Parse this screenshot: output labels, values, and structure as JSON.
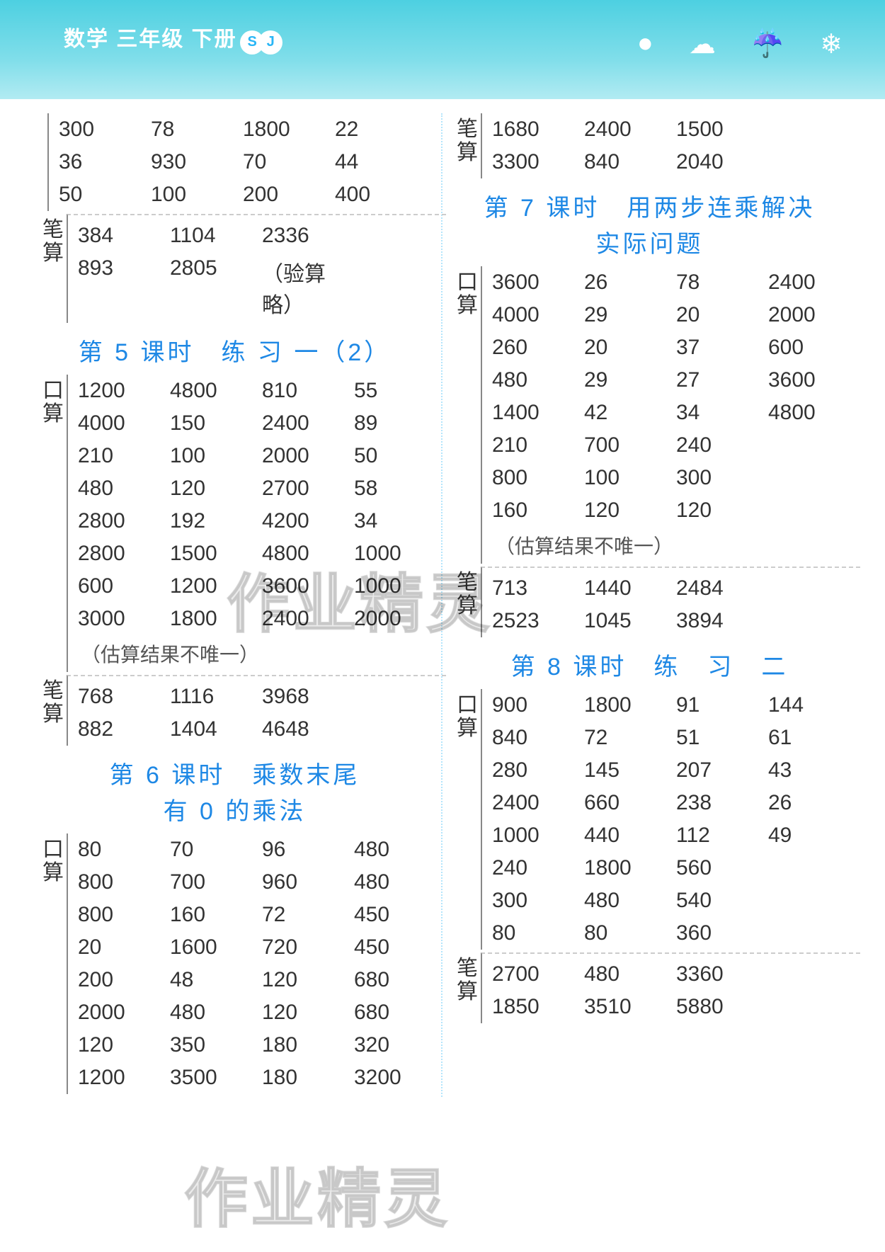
{
  "header": {
    "title": "数学 三年级 下册",
    "badge_s": "S",
    "badge_j": "J",
    "icons": {
      "sun": "●",
      "cloud": "☁",
      "rain": "☔",
      "snow": "❄"
    }
  },
  "left": {
    "top_kousuan_label": "",
    "top_rows": [
      [
        "300",
        "78",
        "1800",
        "22"
      ],
      [
        "36",
        "930",
        "70",
        "44"
      ],
      [
        "50",
        "100",
        "200",
        "400"
      ]
    ],
    "top_bisuan_label": "笔算",
    "top_bisuan_rows": [
      [
        "384",
        "1104",
        "2336",
        ""
      ],
      [
        "893",
        "2805",
        "（验算略）",
        ""
      ]
    ],
    "sec5_title": "第 5 课时　练 习 一（2）",
    "sec5_kousuan_label": "口算",
    "sec5_kousuan_rows": [
      [
        "1200",
        "4800",
        "810",
        "55"
      ],
      [
        "4000",
        "150",
        "2400",
        "89"
      ],
      [
        "210",
        "100",
        "2000",
        "50"
      ],
      [
        "480",
        "120",
        "2700",
        "58"
      ],
      [
        "2800",
        "192",
        "4200",
        "34"
      ],
      [
        "2800",
        "1500",
        "4800",
        "1000"
      ],
      [
        "600",
        "1200",
        "3600",
        "1000"
      ],
      [
        "3000",
        "1800",
        "2400",
        "2000"
      ]
    ],
    "sec5_note": "（估算结果不唯一）",
    "sec5_bisuan_label": "笔算",
    "sec5_bisuan_rows": [
      [
        "768",
        "1116",
        "3968",
        ""
      ],
      [
        "882",
        "1404",
        "4648",
        ""
      ]
    ],
    "sec6_title_l1": "第 6 课时　乘数末尾",
    "sec6_title_l2": "有 0 的乘法",
    "sec6_kousuan_label": "口算",
    "sec6_kousuan_rows": [
      [
        "80",
        "70",
        "96",
        "480"
      ],
      [
        "800",
        "700",
        "960",
        "480"
      ],
      [
        "800",
        "160",
        "72",
        "450"
      ],
      [
        "20",
        "1600",
        "720",
        "450"
      ],
      [
        "200",
        "48",
        "120",
        "680"
      ],
      [
        "2000",
        "480",
        "120",
        "680"
      ],
      [
        "120",
        "350",
        "180",
        "320"
      ],
      [
        "1200",
        "3500",
        "180",
        "3200"
      ]
    ]
  },
  "right": {
    "top_bisuan_label": "笔算",
    "top_bisuan_rows": [
      [
        "1680",
        "2400",
        "1500",
        ""
      ],
      [
        "3300",
        "840",
        "2040",
        ""
      ]
    ],
    "sec7_title_l1": "第 7 课时　用两步连乘解决",
    "sec7_title_l2": "实际问题",
    "sec7_kousuan_label": "口算",
    "sec7_kousuan_rows": [
      [
        "3600",
        "26",
        "78",
        "2400"
      ],
      [
        "4000",
        "29",
        "20",
        "2000"
      ],
      [
        "260",
        "20",
        "37",
        "600"
      ],
      [
        "480",
        "29",
        "27",
        "3600"
      ],
      [
        "1400",
        "42",
        "34",
        "4800"
      ],
      [
        "210",
        "700",
        "240",
        ""
      ],
      [
        "800",
        "100",
        "300",
        ""
      ],
      [
        "160",
        "120",
        "120",
        ""
      ]
    ],
    "sec7_note": "（估算结果不唯一）",
    "sec7_bisuan_label": "笔算",
    "sec7_bisuan_rows": [
      [
        "713",
        "1440",
        "2484",
        ""
      ],
      [
        "2523",
        "1045",
        "3894",
        ""
      ]
    ],
    "sec8_title": "第 8 课时　练　习　二",
    "sec8_kousuan_label": "口算",
    "sec8_kousuan_rows": [
      [
        "900",
        "1800",
        "91",
        "144"
      ],
      [
        "840",
        "72",
        "51",
        "61"
      ],
      [
        "280",
        "145",
        "207",
        "43"
      ],
      [
        "2400",
        "660",
        "238",
        "26"
      ],
      [
        "1000",
        "440",
        "112",
        "49"
      ],
      [
        "240",
        "1800",
        "560",
        ""
      ],
      [
        "300",
        "480",
        "540",
        ""
      ],
      [
        "80",
        "80",
        "360",
        ""
      ]
    ],
    "sec8_bisuan_label": "笔算",
    "sec8_bisuan_rows": [
      [
        "2700",
        "480",
        "3360",
        ""
      ],
      [
        "1850",
        "3510",
        "5880",
        ""
      ]
    ]
  },
  "watermarks": {
    "w1": "作业精灵",
    "w2": "作业精灵"
  },
  "colors": {
    "header_grad_top": "#4dd0e1",
    "header_grad_bot": "#b2ebf2",
    "title_blue": "#1e88e5",
    "text": "#333333",
    "divider": "#888888",
    "dotted": "#b3e5fc"
  }
}
